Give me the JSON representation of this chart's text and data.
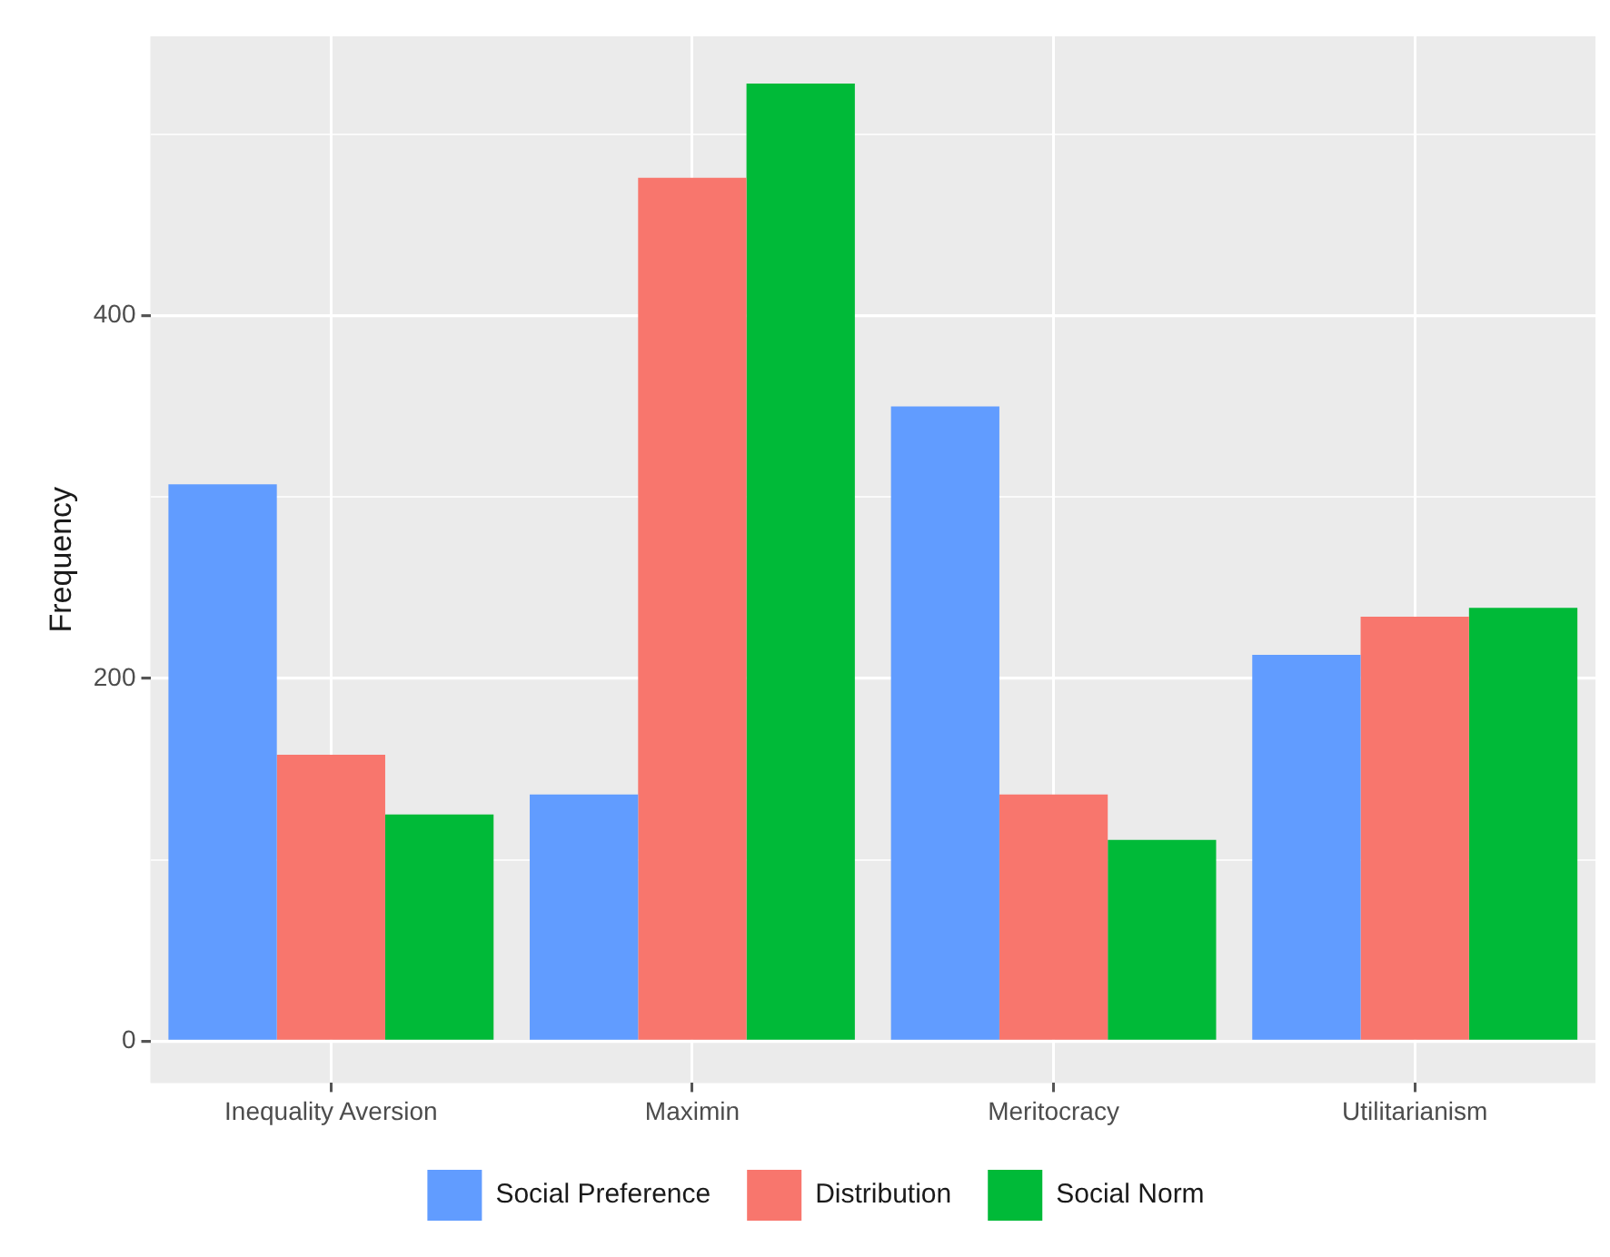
{
  "chart_data": {
    "type": "bar",
    "ylabel": "Frequency",
    "categories": [
      "Inequality Aversion",
      "Maximin",
      "Meritocracy",
      "Utilitarianism"
    ],
    "series": [
      {
        "name": "Social Preference",
        "color": "#619cff",
        "values": [
          307,
          136,
          350,
          213
        ]
      },
      {
        "name": "Distribution",
        "color": "#f8766d",
        "values": [
          158,
          476,
          136,
          234
        ]
      },
      {
        "name": "Social Norm",
        "color": "#00ba38",
        "values": [
          125,
          528,
          111,
          239
        ]
      }
    ],
    "ylim": [
      -23,
      554
    ],
    "yticks": [
      0,
      {
        "value": 100,
        "label": null
      },
      200,
      {
        "value": 300,
        "label": null
      },
      400,
      {
        "value": 500,
        "label": null
      }
    ],
    "grid": true,
    "legend": "bottom"
  }
}
